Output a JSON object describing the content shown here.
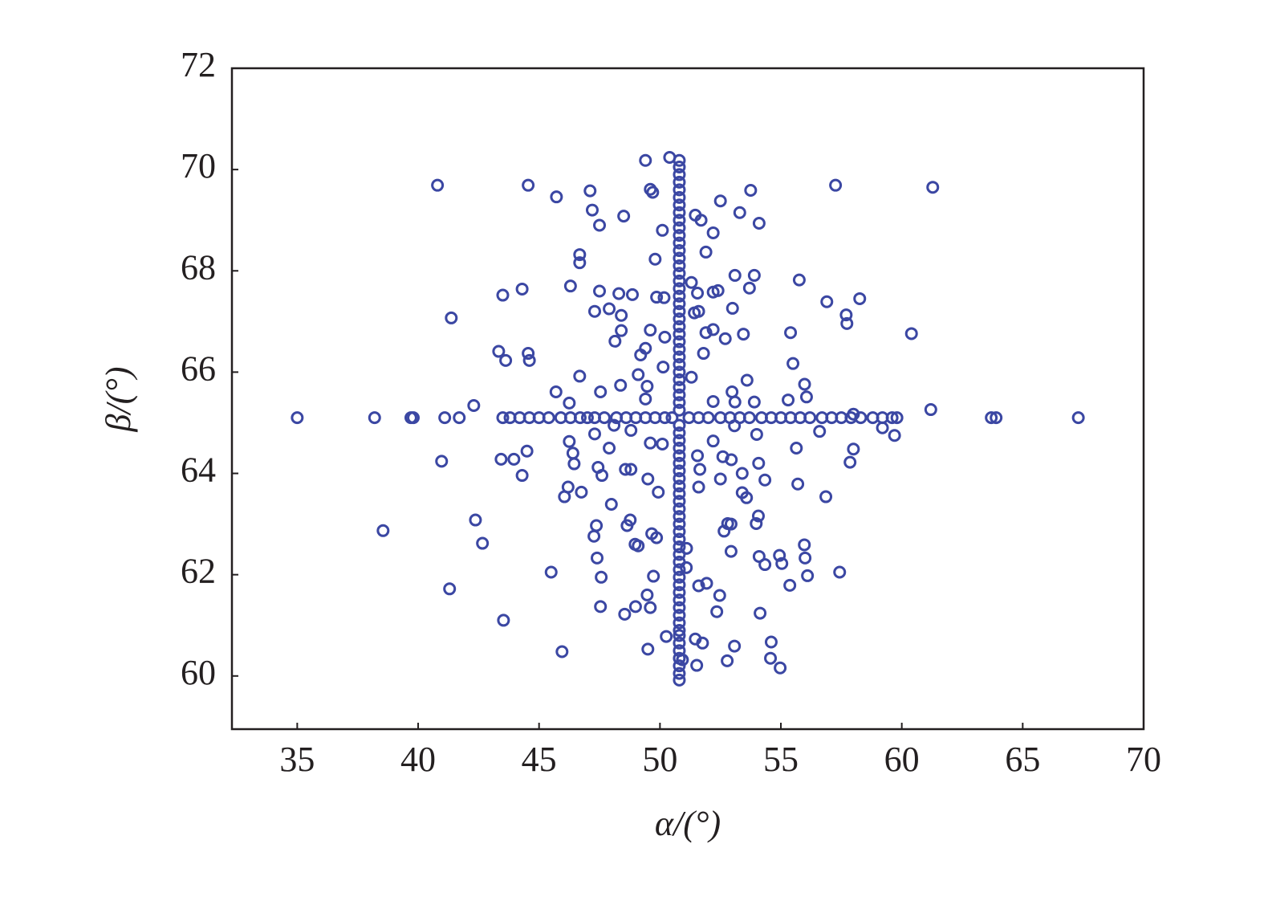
{
  "chart_data": {
    "type": "scatter",
    "x_label": "α/(°)",
    "y_label": "β/(°)",
    "color": "#3b47a3",
    "marker": "open-circle",
    "xlim": [
      32.3,
      70
    ],
    "ylim": [
      58.95,
      72
    ],
    "xticks": [
      35,
      40,
      45,
      50,
      55,
      60,
      65,
      70
    ],
    "yticks": [
      60,
      62,
      64,
      66,
      68,
      70,
      72
    ],
    "x": [
      40.8,
      44.55,
      49.4,
      50.4,
      57.26,
      61.28,
      45.72,
      47.11,
      49.6,
      49.7,
      53.75,
      52.5,
      53.3,
      54.1,
      47.2,
      47.5,
      48.5,
      51.46,
      51.7,
      52.2,
      50.1,
      51.9,
      49.8,
      46.68,
      46.68,
      44.3,
      43.5,
      46.3,
      47.5,
      48.3,
      48.86,
      47.3,
      47.9,
      48.4,
      49.86,
      50.17,
      51.3,
      51.55,
      51.42,
      51.6,
      52.2,
      52.4,
      53.1,
      53.9,
      53.7,
      53.0,
      55.76,
      56.9,
      57.7,
      58.26,
      57.73,
      60.4,
      41.37,
      48.4,
      48.14,
      49.6,
      50.2,
      51.9,
      52.2,
      52.7,
      53.45,
      55.4,
      43.33,
      43.62,
      44.55,
      44.6,
      49.2,
      49.4,
      50.13,
      51.8,
      55.5,
      46.68,
      49.1,
      51.3,
      53.6,
      55.98,
      45.7,
      47.54,
      48.37,
      49.47,
      49.4,
      52.2,
      52.98,
      53.1,
      53.9,
      55.3,
      56.06,
      42.3,
      46.25,
      61.2,
      58.0,
      35.0,
      38.2,
      39.7,
      39.8,
      41.1,
      41.7,
      43.5,
      43.8,
      44.2,
      44.6,
      45.0,
      45.4,
      45.9,
      46.3,
      46.7,
      47.0,
      47.3,
      47.7,
      48.2,
      48.6,
      49.0,
      49.4,
      49.8,
      50.2,
      50.5,
      51.2,
      51.6,
      52.0,
      52.5,
      52.9,
      53.3,
      53.7,
      54.2,
      54.6,
      55.0,
      55.4,
      55.8,
      56.2,
      56.7,
      57.1,
      57.5,
      57.9,
      58.3,
      58.8,
      59.2,
      59.6,
      59.8,
      63.7,
      63.9,
      67.3,
      59.2,
      59.7,
      53.08,
      54.0,
      47.3,
      48.1,
      48.8,
      49.6,
      50.1,
      56.6,
      52.2,
      46.25,
      46.4,
      47.9,
      44.5,
      55.64,
      58.0,
      40.97,
      43.43,
      43.96,
      46.45,
      47.44,
      48.57,
      48.8,
      51.55,
      51.65,
      52.6,
      52.95,
      54.08,
      57.86,
      44.3,
      47.6,
      49.5,
      52.5,
      53.4,
      54.34,
      55.7,
      46.2,
      46.05,
      46.75,
      49.93,
      51.6,
      53.4,
      53.58,
      56.86,
      47.99,
      54.07,
      53.98,
      42.37,
      47.37,
      48.64,
      48.77,
      52.8,
      52.94,
      38.55,
      47.27,
      49.66,
      49.86,
      52.65,
      48.97,
      49.1,
      51.1,
      42.66,
      52.94,
      55.97,
      56.0,
      47.4,
      54.1,
      54.34,
      54.94,
      55.04,
      51.09,
      45.5,
      47.57,
      49.73,
      56.1,
      57.43,
      55.37,
      51.6,
      51.93,
      41.3,
      49.47,
      52.47,
      47.54,
      48.99,
      49.6,
      48.54,
      52.35,
      54.14,
      43.53,
      50.26,
      51.46,
      51.76,
      54.6,
      49.5,
      53.08,
      45.95,
      54.57,
      54.97,
      52.78,
      51.52,
      50.93,
      50.8,
      50.8,
      50.8,
      50.8,
      50.8,
      50.8,
      50.8,
      50.8,
      50.8,
      50.8,
      50.8,
      50.8,
      50.8,
      50.8,
      50.8,
      50.8,
      50.8,
      50.8,
      50.8,
      50.8,
      50.8,
      50.8,
      50.8,
      50.8,
      50.8,
      50.8,
      50.8,
      50.8,
      50.8,
      50.8,
      50.8,
      50.8,
      50.8,
      50.8,
      50.8,
      50.8,
      50.8,
      50.8,
      50.8,
      50.8,
      50.8,
      50.8,
      50.8,
      50.8,
      50.8,
      50.8,
      50.8,
      50.8,
      50.8,
      50.8,
      50.8,
      50.8,
      50.8,
      50.8,
      50.8,
      50.8,
      50.8,
      50.8,
      50.8,
      50.8,
      50.8,
      50.8,
      50.8,
      50.8,
      50.8,
      50.8,
      50.8,
      50.8,
      50.8
    ],
    "values": [
      69.69,
      69.69,
      70.18,
      70.24,
      69.69,
      69.65,
      69.46,
      69.58,
      69.61,
      69.55,
      69.59,
      69.38,
      69.15,
      68.94,
      69.2,
      68.9,
      69.08,
      69.1,
      69.0,
      68.75,
      68.8,
      68.37,
      68.23,
      68.32,
      68.16,
      67.64,
      67.52,
      67.7,
      67.6,
      67.55,
      67.53,
      67.2,
      67.25,
      67.12,
      67.48,
      67.47,
      67.77,
      67.56,
      67.17,
      67.2,
      67.58,
      67.61,
      67.91,
      67.91,
      67.66,
      67.26,
      67.82,
      67.39,
      67.13,
      67.45,
      66.96,
      66.76,
      67.07,
      66.82,
      66.61,
      66.83,
      66.69,
      66.78,
      66.84,
      66.66,
      66.75,
      66.78,
      66.41,
      66.23,
      66.37,
      66.23,
      66.34,
      66.47,
      66.1,
      66.37,
      66.17,
      65.92,
      65.95,
      65.9,
      65.84,
      65.76,
      65.61,
      65.61,
      65.74,
      65.72,
      65.47,
      65.42,
      65.61,
      65.41,
      65.41,
      65.45,
      65.51,
      65.34,
      65.39,
      65.26,
      65.17,
      65.1,
      65.1,
      65.1,
      65.1,
      65.1,
      65.1,
      65.1,
      65.1,
      65.1,
      65.1,
      65.1,
      65.1,
      65.1,
      65.1,
      65.1,
      65.1,
      65.1,
      65.1,
      65.1,
      65.1,
      65.1,
      65.1,
      65.1,
      65.1,
      65.1,
      65.1,
      65.1,
      65.1,
      65.1,
      65.1,
      65.1,
      65.1,
      65.1,
      65.1,
      65.1,
      65.1,
      65.1,
      65.1,
      65.1,
      65.1,
      65.1,
      65.1,
      65.1,
      65.1,
      65.1,
      65.1,
      65.1,
      65.1,
      65.1,
      65.1,
      64.9,
      64.75,
      64.94,
      64.77,
      64.78,
      64.95,
      64.85,
      64.6,
      64.58,
      64.83,
      64.64,
      64.63,
      64.4,
      64.5,
      64.44,
      64.5,
      64.48,
      64.24,
      64.28,
      64.28,
      64.19,
      64.12,
      64.08,
      64.08,
      64.35,
      64.08,
      64.33,
      64.27,
      64.2,
      64.22,
      63.96,
      63.96,
      63.89,
      63.89,
      64.0,
      63.87,
      63.79,
      63.73,
      63.54,
      63.63,
      63.63,
      63.73,
      63.62,
      63.52,
      63.54,
      63.39,
      63.16,
      63.01,
      63.08,
      62.97,
      62.97,
      63.08,
      63.01,
      63.0,
      62.87,
      62.76,
      62.81,
      62.73,
      62.86,
      62.6,
      62.57,
      62.52,
      62.62,
      62.46,
      62.59,
      62.33,
      62.33,
      62.36,
      62.2,
      62.38,
      62.22,
      62.14,
      62.05,
      61.95,
      61.97,
      61.98,
      62.05,
      61.79,
      61.78,
      61.83,
      61.72,
      61.6,
      61.59,
      61.37,
      61.37,
      61.35,
      61.22,
      61.27,
      61.24,
      61.1,
      60.78,
      60.73,
      60.65,
      60.67,
      60.53,
      60.59,
      60.48,
      60.35,
      60.16,
      60.3,
      60.21,
      60.32,
      59.92,
      60.05,
      60.2,
      60.35,
      60.5,
      60.65,
      60.8,
      60.9,
      61.05,
      61.2,
      61.35,
      61.5,
      61.65,
      61.8,
      61.95,
      62.1,
      62.25,
      62.4,
      62.55,
      62.7,
      62.85,
      63.0,
      63.15,
      63.3,
      63.45,
      63.6,
      63.75,
      63.9,
      64.05,
      64.2,
      64.35,
      64.5,
      64.65,
      64.8,
      64.95,
      65.25,
      65.4,
      65.55,
      65.7,
      65.85,
      66.0,
      66.15,
      66.3,
      66.45,
      66.6,
      66.75,
      66.9,
      67.05,
      67.2,
      67.35,
      67.5,
      67.65,
      67.8,
      67.95,
      68.1,
      68.25,
      68.4,
      68.55,
      68.7,
      68.85,
      69.0,
      69.15,
      69.3,
      69.45,
      69.6,
      69.75,
      69.9,
      70.05,
      70.18
    ]
  }
}
